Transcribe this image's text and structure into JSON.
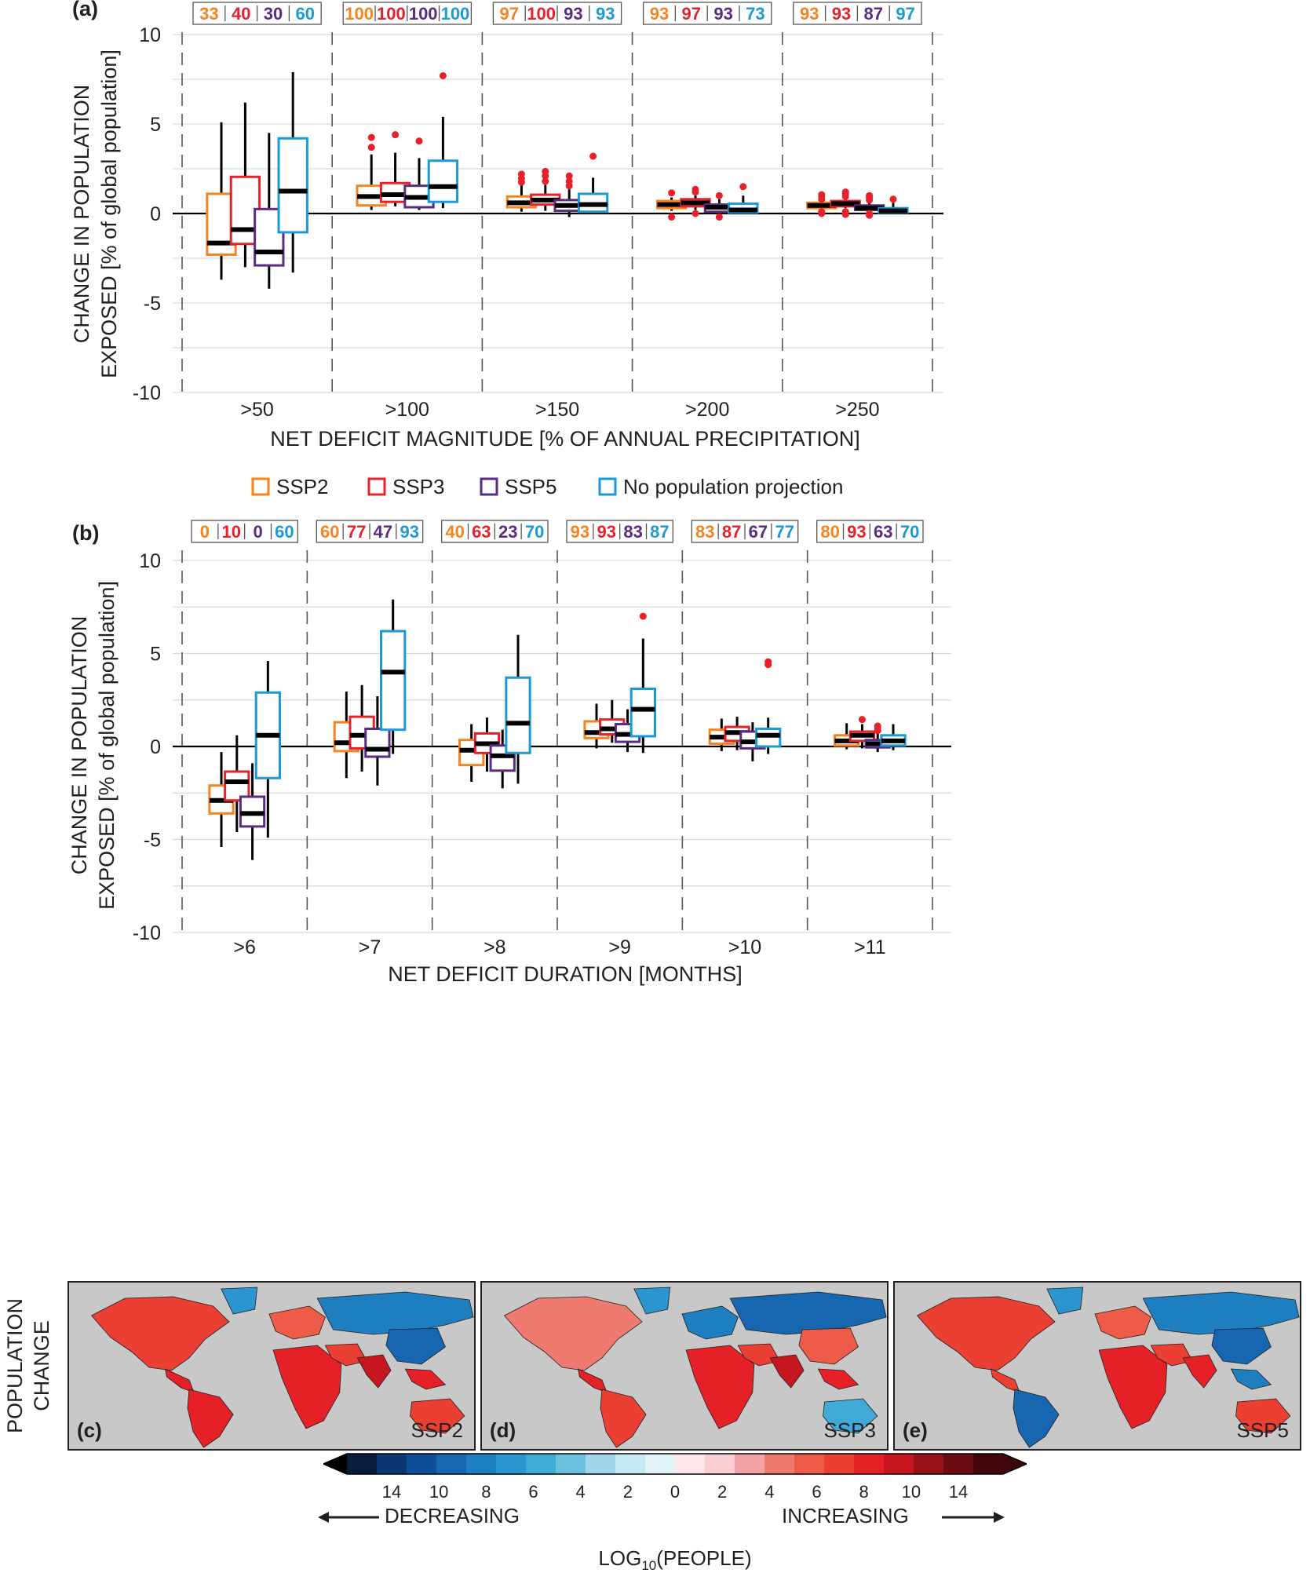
{
  "colors": {
    "ssp2": "#f7821e",
    "ssp3": "#e8202a",
    "ssp5": "#5b2a82",
    "nopop": "#1a9ad6",
    "outlier": "#e8202a",
    "median": "#000000"
  },
  "legend": [
    {
      "key": "ssp2",
      "label": "SSP2"
    },
    {
      "key": "ssp3",
      "label": "SSP3"
    },
    {
      "key": "ssp5",
      "label": "SSP5"
    },
    {
      "key": "nopop",
      "label": "No population projection"
    }
  ],
  "chart_data": [
    {
      "panel": "(a)",
      "type": "box",
      "ylabel_line1": "CHANGE IN POPULATION",
      "ylabel_line2": "EXPOSED  [% of global population]",
      "xlabel": "NET DEFICIT MAGNITUDE [% OF ANNUAL PRECIPITATION]",
      "ylim": [
        -10,
        10
      ],
      "yticks": [
        "10",
        "5",
        "0",
        "-5",
        "-10"
      ],
      "categories": [
        ">50",
        ">100",
        ">150",
        ">200",
        ">250"
      ],
      "agreement": [
        [
          "33",
          "40",
          "30",
          "60"
        ],
        [
          "100",
          "100",
          "100",
          "100"
        ],
        [
          "97",
          "100",
          "93",
          "93"
        ],
        [
          "93",
          "97",
          "93",
          "73"
        ],
        [
          "93",
          "93",
          "87",
          "97"
        ]
      ],
      "boxes": [
        [
          {
            "wlo": -3.7,
            "q1": -2.3,
            "med": -1.65,
            "q3": 1.1,
            "whi": 5.1,
            "out": []
          },
          {
            "wlo": -3.0,
            "q1": -1.7,
            "med": -0.9,
            "q3": 2.05,
            "whi": 6.2,
            "out": []
          },
          {
            "wlo": -4.2,
            "q1": -2.9,
            "med": -2.15,
            "q3": 0.25,
            "whi": 4.5,
            "out": []
          },
          {
            "wlo": -3.3,
            "q1": -1.05,
            "med": 1.25,
            "q3": 4.2,
            "whi": 7.9,
            "out": []
          }
        ],
        [
          {
            "wlo": 0.2,
            "q1": 0.45,
            "med": 0.95,
            "q3": 1.55,
            "whi": 3.3,
            "out": [
              3.7,
              4.25
            ]
          },
          {
            "wlo": 0.4,
            "q1": 0.65,
            "med": 1.05,
            "q3": 1.7,
            "whi": 3.4,
            "out": [
              4.4
            ]
          },
          {
            "wlo": 0.2,
            "q1": 0.35,
            "med": 0.9,
            "q3": 1.55,
            "whi": 3.1,
            "out": [
              4.05
            ]
          },
          {
            "wlo": 0.3,
            "q1": 0.65,
            "med": 1.5,
            "q3": 2.95,
            "whi": 5.4,
            "out": [
              7.7
            ]
          }
        ],
        [
          {
            "wlo": 0.1,
            "q1": 0.35,
            "med": 0.6,
            "q3": 0.95,
            "whi": 1.6,
            "out": [
              1.75,
              1.95,
              2.2
            ]
          },
          {
            "wlo": 0.15,
            "q1": 0.5,
            "med": 0.75,
            "q3": 1.05,
            "whi": 1.6,
            "out": [
              1.8,
              2.1,
              2.35
            ]
          },
          {
            "wlo": -0.2,
            "q1": 0.15,
            "med": 0.45,
            "q3": 0.75,
            "whi": 1.35,
            "out": [
              1.55,
              1.8,
              2.1
            ]
          },
          {
            "wlo": 0.0,
            "q1": 0.1,
            "med": 0.5,
            "q3": 1.1,
            "whi": 2.0,
            "out": [
              3.2
            ]
          }
        ],
        [
          {
            "wlo": 0.15,
            "q1": 0.3,
            "med": 0.5,
            "q3": 0.7,
            "whi": 0.9,
            "out": [
              -0.2,
              1.15
            ]
          },
          {
            "wlo": 0.2,
            "q1": 0.4,
            "med": 0.6,
            "q3": 0.8,
            "whi": 1.0,
            "out": [
              0.0,
              1.2,
              1.35
            ]
          },
          {
            "wlo": 0.0,
            "q1": 0.1,
            "med": 0.35,
            "q3": 0.5,
            "whi": 0.8,
            "out": [
              -0.2,
              1.0
            ]
          },
          {
            "wlo": 0.0,
            "q1": 0.05,
            "med": 0.2,
            "q3": 0.55,
            "whi": 1.0,
            "out": [
              1.5
            ]
          }
        ],
        [
          {
            "wlo": 0.2,
            "q1": 0.3,
            "med": 0.45,
            "q3": 0.6,
            "whi": 0.7,
            "out": [
              0.0,
              0.1,
              0.8,
              0.95,
              1.05
            ]
          },
          {
            "wlo": 0.3,
            "q1": 0.4,
            "med": 0.55,
            "q3": 0.7,
            "whi": 0.85,
            "out": [
              -0.05,
              0.1,
              0.95,
              1.1,
              1.2
            ]
          },
          {
            "wlo": 0.1,
            "q1": 0.2,
            "med": 0.3,
            "q3": 0.45,
            "whi": 0.6,
            "out": [
              -0.1,
              0.0,
              0.75,
              0.9,
              1.0
            ]
          },
          {
            "wlo": 0.0,
            "q1": 0.05,
            "med": 0.15,
            "q3": 0.3,
            "whi": 0.6,
            "out": [
              0.8
            ]
          }
        ]
      ]
    },
    {
      "panel": "(b)",
      "type": "box",
      "ylabel_line1": "CHANGE IN POPULATION",
      "ylabel_line2": "EXPOSED  [% of global population]",
      "xlabel": "NET DEFICIT DURATION [MONTHS]",
      "ylim": [
        -10,
        10
      ],
      "yticks": [
        "10",
        "5",
        "0",
        "-5",
        "-10"
      ],
      "categories": [
        ">6",
        ">7",
        ">8",
        ">9",
        ">10",
        ">11"
      ],
      "agreement": [
        [
          "0",
          "10",
          "0",
          "60"
        ],
        [
          "60",
          "77",
          "47",
          "93"
        ],
        [
          "40",
          "63",
          "23",
          "70"
        ],
        [
          "93",
          "93",
          "83",
          "87"
        ],
        [
          "83",
          "87",
          "67",
          "77"
        ],
        [
          "80",
          "93",
          "63",
          "70"
        ]
      ],
      "boxes": [
        [
          {
            "wlo": -5.4,
            "q1": -3.6,
            "med": -2.9,
            "q3": -2.1,
            "whi": -0.3,
            "out": []
          },
          {
            "wlo": -4.6,
            "q1": -2.9,
            "med": -1.9,
            "q3": -1.35,
            "whi": 0.6,
            "out": []
          },
          {
            "wlo": -6.1,
            "q1": -4.3,
            "med": -3.6,
            "q3": -2.7,
            "whi": -0.9,
            "out": []
          },
          {
            "wlo": -4.9,
            "q1": -1.7,
            "med": 0.6,
            "q3": 2.9,
            "whi": 4.6,
            "out": []
          }
        ],
        [
          {
            "wlo": -1.7,
            "q1": -0.25,
            "med": 0.2,
            "q3": 1.3,
            "whi": 2.95,
            "out": []
          },
          {
            "wlo": -1.35,
            "q1": -0.1,
            "med": 0.6,
            "q3": 1.6,
            "whi": 3.3,
            "out": []
          },
          {
            "wlo": -2.1,
            "q1": -0.55,
            "med": -0.15,
            "q3": 0.95,
            "whi": 2.7,
            "out": []
          },
          {
            "wlo": -0.4,
            "q1": 0.9,
            "med": 4.0,
            "q3": 6.2,
            "whi": 7.9,
            "out": []
          }
        ],
        [
          {
            "wlo": -1.9,
            "q1": -1.0,
            "med": -0.2,
            "q3": 0.35,
            "whi": 1.2,
            "out": []
          },
          {
            "wlo": -1.35,
            "q1": -0.35,
            "med": 0.15,
            "q3": 0.7,
            "whi": 1.55,
            "out": []
          },
          {
            "wlo": -2.25,
            "q1": -1.3,
            "med": -0.5,
            "q3": 0.05,
            "whi": 0.9,
            "out": []
          },
          {
            "wlo": -2.0,
            "q1": -0.35,
            "med": 1.25,
            "q3": 3.7,
            "whi": 6.0,
            "out": []
          }
        ],
        [
          {
            "wlo": -0.1,
            "q1": 0.45,
            "med": 0.75,
            "q3": 1.35,
            "whi": 2.3,
            "out": []
          },
          {
            "wlo": 0.2,
            "q1": 0.65,
            "med": 0.95,
            "q3": 1.45,
            "whi": 2.5,
            "out": []
          },
          {
            "wlo": -0.3,
            "q1": 0.25,
            "med": 0.65,
            "q3": 1.2,
            "whi": 2.0,
            "out": []
          },
          {
            "wlo": -0.35,
            "q1": 0.55,
            "med": 2.0,
            "q3": 3.1,
            "whi": 5.8,
            "out": [
              7.0
            ]
          }
        ],
        [
          {
            "wlo": -0.25,
            "q1": 0.15,
            "med": 0.5,
            "q3": 0.9,
            "whi": 1.5,
            "out": []
          },
          {
            "wlo": -0.2,
            "q1": 0.3,
            "med": 0.75,
            "q3": 1.05,
            "whi": 1.6,
            "out": []
          },
          {
            "wlo": -0.8,
            "q1": -0.1,
            "med": 0.25,
            "q3": 0.8,
            "whi": 1.3,
            "out": []
          },
          {
            "wlo": -0.4,
            "q1": 0.0,
            "med": 0.6,
            "q3": 0.95,
            "whi": 1.55,
            "out": [
              4.4,
              4.55
            ]
          }
        ],
        [
          {
            "wlo": -0.15,
            "q1": 0.05,
            "med": 0.3,
            "q3": 0.6,
            "whi": 1.25,
            "out": []
          },
          {
            "wlo": -0.1,
            "q1": 0.3,
            "med": 0.6,
            "q3": 0.8,
            "whi": 1.2,
            "out": [
              1.45
            ]
          },
          {
            "wlo": -0.3,
            "q1": -0.05,
            "med": 0.15,
            "q3": 0.35,
            "whi": 0.7,
            "out": [
              0.85,
              1.0,
              1.1
            ]
          },
          {
            "wlo": -0.2,
            "q1": 0.05,
            "med": 0.3,
            "q3": 0.6,
            "whi": 1.2,
            "out": []
          }
        ]
      ]
    }
  ],
  "maps": {
    "ylabel_line1": "POPULATION",
    "ylabel_line2": "CHANGE",
    "panels": [
      {
        "letter": "(c)",
        "scenario": "SSP2"
      },
      {
        "letter": "(d)",
        "scenario": "SSP3"
      },
      {
        "letter": "(e)",
        "scenario": "SSP5"
      }
    ]
  },
  "colorbar": {
    "colors": [
      "#081d3a",
      "#0b3673",
      "#0f4f98",
      "#1666b0",
      "#1d7fc0",
      "#2a95cf",
      "#40a9d6",
      "#6cc0dd",
      "#9fd6ea",
      "#c6e8f3",
      "#e2f3f8",
      "#fde6ea",
      "#f9cdd3",
      "#f3a3a5",
      "#ef7a6f",
      "#ee5b48",
      "#ea3f32",
      "#e52127",
      "#c7161f",
      "#97101a",
      "#6b0c13",
      "#3f0709"
    ],
    "tick_labels": [
      "14",
      "10",
      "8",
      "6",
      "4",
      "2",
      "0",
      "2",
      "4",
      "6",
      "8",
      "10",
      "14"
    ],
    "decreasing": "DECREASING",
    "increasing": "INCREASING",
    "title_main": "LOG",
    "title_sub": "10",
    "title_tail": "(PEOPLE)"
  }
}
